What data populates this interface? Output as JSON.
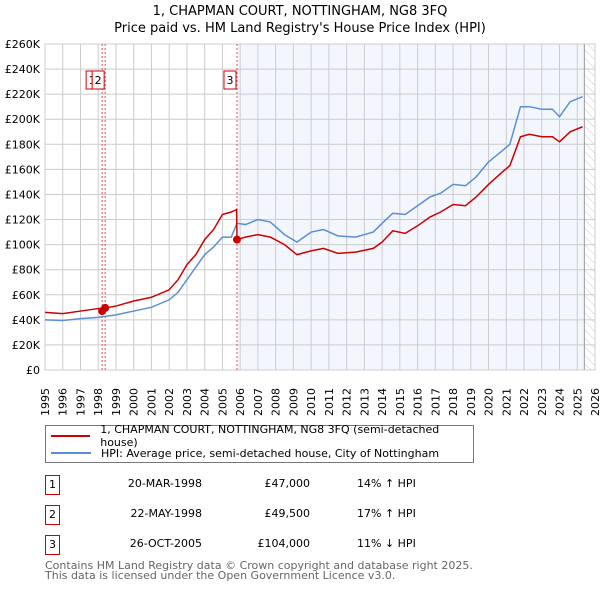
{
  "title": {
    "line1": "1, CHAPMAN COURT, NOTTINGHAM, NG8 3FQ",
    "line2": "Price paid vs. HM Land Registry's House Price Index (HPI)"
  },
  "chart_data": {
    "type": "line",
    "ylim": [
      0,
      260000
    ],
    "xlim": [
      1995,
      2026
    ],
    "yticks": [
      {
        "v": 0,
        "label": "£0"
      },
      {
        "v": 20000,
        "label": "£20K"
      },
      {
        "v": 40000,
        "label": "£40K"
      },
      {
        "v": 60000,
        "label": "£60K"
      },
      {
        "v": 80000,
        "label": "£80K"
      },
      {
        "v": 100000,
        "label": "£100K"
      },
      {
        "v": 120000,
        "label": "£120K"
      },
      {
        "v": 140000,
        "label": "£140K"
      },
      {
        "v": 160000,
        "label": "£160K"
      },
      {
        "v": 180000,
        "label": "£180K"
      },
      {
        "v": 200000,
        "label": "£200K"
      },
      {
        "v": 220000,
        "label": "£220K"
      },
      {
        "v": 240000,
        "label": "£240K"
      },
      {
        "v": 260000,
        "label": "£260K"
      }
    ],
    "xticks": [
      "1995",
      "1996",
      "1997",
      "1998",
      "1999",
      "2000",
      "2001",
      "2002",
      "2003",
      "2004",
      "2005",
      "2006",
      "2007",
      "2008",
      "2009",
      "2010",
      "2011",
      "2012",
      "2013",
      "2014",
      "2015",
      "2016",
      "2017",
      "2018",
      "2019",
      "2020",
      "2021",
      "2022",
      "2023",
      "2024",
      "2025",
      "2026"
    ],
    "series": [
      {
        "name": "1, CHAPMAN COURT, NOTTINGHAM, NG8 3FQ (semi-detached house)",
        "color": "#cc0000",
        "x": [
          1995,
          1996,
          1997,
          1998,
          1998.39,
          1999,
          2000,
          2001,
          2002,
          2002.5,
          2003,
          2003.5,
          2004,
          2004.5,
          2005,
          2005.5,
          2005.8,
          2005.82,
          2006.3,
          2007,
          2007.7,
          2008.5,
          2009.2,
          2010,
          2010.7,
          2011.5,
          2012.5,
          2013.5,
          2014,
          2014.6,
          2015.3,
          2016,
          2016.7,
          2017.3,
          2018,
          2018.7,
          2019.3,
          2020,
          2020.7,
          2021.2,
          2021.8,
          2022.3,
          2023,
          2023.6,
          2024,
          2024.6,
          2025.3
        ],
        "y": [
          46000,
          45000,
          47000,
          49000,
          49500,
          51000,
          55000,
          58000,
          64000,
          72000,
          84000,
          92000,
          104000,
          112000,
          124000,
          126000,
          128000,
          104000,
          106000,
          108000,
          106000,
          100000,
          92000,
          95000,
          97000,
          93000,
          94000,
          97000,
          102000,
          111000,
          109000,
          115000,
          122000,
          126000,
          132000,
          131000,
          138000,
          148000,
          157000,
          163000,
          186000,
          188000,
          186000,
          186000,
          182000,
          190000,
          194000
        ]
      },
      {
        "name": "HPI: Average price, semi-detached house, City of Nottingham",
        "color": "#5b8fd4",
        "x": [
          1995,
          1996,
          1997,
          1998,
          1999,
          2000,
          2001,
          2002,
          2002.5,
          2003,
          2003.5,
          2004,
          2004.5,
          2005,
          2005.5,
          2005.82,
          2006.3,
          2007,
          2007.7,
          2008.5,
          2009.2,
          2010,
          2010.7,
          2011.5,
          2012.5,
          2013.5,
          2014,
          2014.6,
          2015.3,
          2016,
          2016.7,
          2017.3,
          2018,
          2018.7,
          2019.3,
          2020,
          2020.7,
          2021.2,
          2021.8,
          2022.3,
          2023,
          2023.6,
          2024,
          2024.6,
          2025.3
        ],
        "y": [
          40000,
          39500,
          41000,
          42000,
          44000,
          47000,
          50000,
          56000,
          62000,
          72000,
          82000,
          92000,
          98000,
          106000,
          106000,
          117000,
          116000,
          120000,
          118000,
          108000,
          102000,
          110000,
          112000,
          107000,
          106000,
          110000,
          117000,
          125000,
          124000,
          131000,
          138000,
          141000,
          148000,
          147000,
          154000,
          166000,
          174000,
          180000,
          210000,
          210000,
          208000,
          208000,
          202000,
          214000,
          218000
        ]
      }
    ],
    "sales": [
      {
        "id": "1",
        "x": 1998.22,
        "price": 47000
      },
      {
        "id": "2",
        "x": 1998.39,
        "price": 49500
      },
      {
        "id": "3",
        "x": 2005.82,
        "price": 104000
      }
    ]
  },
  "legend": {
    "series1": "1, CHAPMAN COURT, NOTTINGHAM, NG8 3FQ (semi-detached house)",
    "series2": "HPI: Average price, semi-detached house, City of Nottingham"
  },
  "transactions": [
    {
      "num": "1",
      "date": "20-MAR-1998",
      "price": "£47,000",
      "hpi": "14% ↑ HPI"
    },
    {
      "num": "2",
      "date": "22-MAY-1998",
      "price": "£49,500",
      "hpi": "17% ↑ HPI"
    },
    {
      "num": "3",
      "date": "26-OCT-2005",
      "price": "£104,000",
      "hpi": "11% ↓ HPI"
    }
  ],
  "footer": {
    "line1": "Contains HM Land Registry data © Crown copyright and database right 2025.",
    "line2": "This data is licensed under the Open Government Licence v3.0."
  }
}
